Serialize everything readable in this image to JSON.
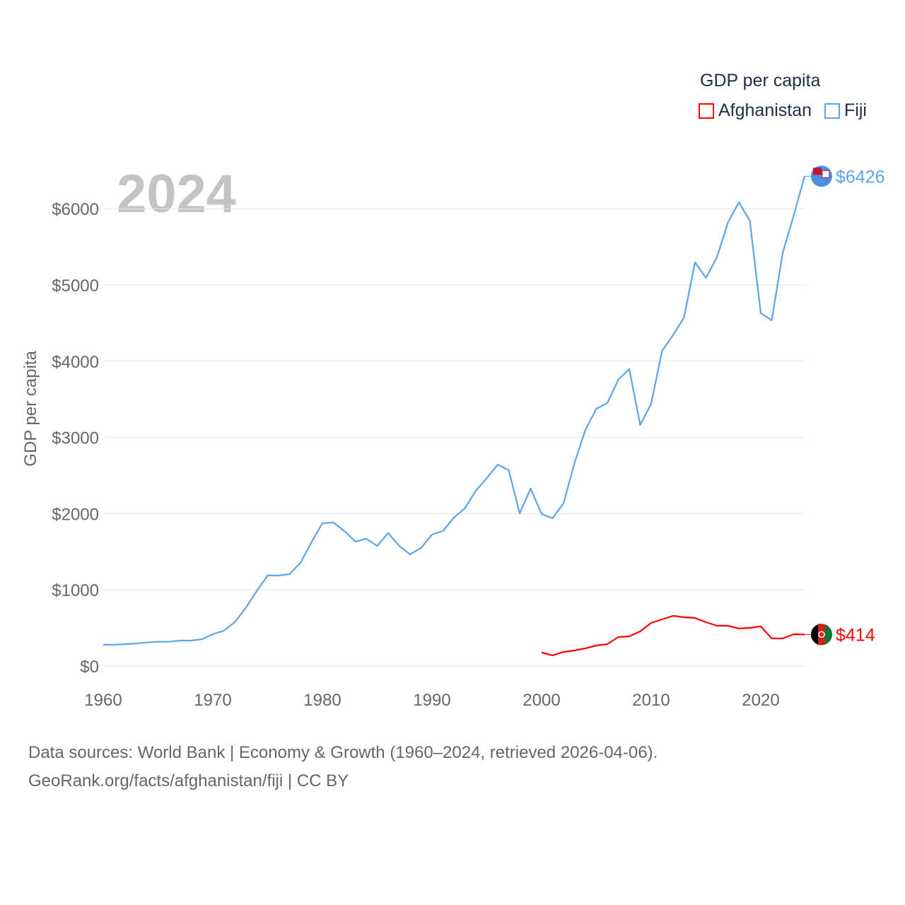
{
  "legend": {
    "title": "GDP per capita",
    "items": [
      {
        "label": "Afghanistan",
        "color": "#ff0000"
      },
      {
        "label": "Fiji",
        "color": "#5ba4ee"
      }
    ]
  },
  "footer": {
    "line1": "Data sources: World Bank | Economy & Growth (1960–2024, retrieved 2026-04-06).",
    "line2": "GeoRank.org/facts/afghanistan/fiji | CC BY"
  },
  "chart_data": {
    "type": "line",
    "year_label": "2024",
    "ylabel": "GDP per capita",
    "xlabel": "",
    "xlim": [
      1960,
      2024
    ],
    "ylim": [
      0,
      6426
    ],
    "xticks": [
      1960,
      1970,
      1980,
      1990,
      2000,
      2010,
      2020
    ],
    "yticks": [
      0,
      1000,
      2000,
      3000,
      4000,
      5000,
      6000
    ],
    "ytick_labels": [
      "$0",
      "$1000",
      "$2000",
      "$3000",
      "$4000",
      "$5000",
      "$6000"
    ],
    "grid": true,
    "series": [
      {
        "name": "Fiji",
        "color": "#5ba4ee",
        "end_label": "$6426",
        "start": 1960,
        "values": [
          278,
          280,
          287,
          297,
          309,
          318,
          318,
          334,
          334,
          352,
          417,
          464,
          575,
          760,
          983,
          1187,
          1187,
          1206,
          1354,
          1623,
          1874,
          1883,
          1772,
          1633,
          1670,
          1577,
          1744,
          1577,
          1466,
          1549,
          1725,
          1772,
          1948,
          2069,
          2300,
          2467,
          2644,
          2570,
          2004,
          2328,
          1994,
          1939,
          2134,
          2662,
          3098,
          3377,
          3451,
          3757,
          3896,
          3163,
          3442,
          4137,
          4341,
          4573,
          5297,
          5093,
          5362,
          5816,
          6085,
          5844,
          4629,
          4536,
          5417,
          5909,
          6426
        ]
      },
      {
        "name": "Afghanistan",
        "color": "#ff0000",
        "end_label": "$414",
        "start": 2000,
        "values": [
          176,
          139,
          185,
          204,
          232,
          269,
          288,
          380,
          390,
          455,
          566,
          612,
          659,
          640,
          631,
          575,
          529,
          529,
          492,
          501,
          520,
          362,
          362,
          417,
          414
        ]
      }
    ]
  }
}
